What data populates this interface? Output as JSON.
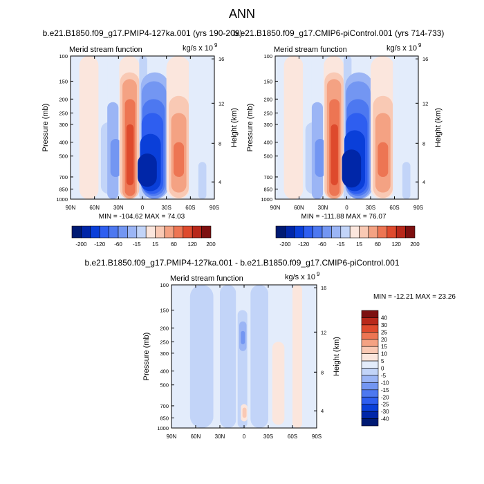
{
  "page": {
    "title": "ANN"
  },
  "colors": {
    "levels": [
      -40,
      -30,
      -25,
      -20,
      -15,
      -10,
      -5,
      0,
      5,
      10,
      15,
      20,
      25,
      30,
      40
    ],
    "bins": [
      "#001a73",
      "#0026a8",
      "#0a3fd9",
      "#2e5ef0",
      "#4d78f0",
      "#7396f2",
      "#9bb5f5",
      "#c2d4f8",
      "#e3ecfb",
      "#fbe6dd",
      "#f9c9b4",
      "#f4a283",
      "#ed7553",
      "#de4a2d",
      "#b8281a",
      "#7d1010"
    ]
  },
  "chart_data": [
    {
      "type": "heatmap",
      "title": "b.e21.B1850.f09_g17.PMIP4-127ka.001 (yrs 190-209)",
      "corner_left": "Merid stream function",
      "units": "kg/s x 10",
      "units_sup": "9",
      "ylabel": "Pressure (mb)",
      "ylabel_right": "Height (km)",
      "x_ticks": [
        "90N",
        "60N",
        "30N",
        "0",
        "30S",
        "60S",
        "90S"
      ],
      "x_range": [
        90,
        -90
      ],
      "y_ticks": [
        "100",
        "150",
        "200",
        "250",
        "300",
        "400",
        "500",
        "700",
        "850",
        "1000"
      ],
      "y_range": [
        100,
        1000
      ],
      "y_right_ticks": [
        "16",
        "12",
        "8",
        "4"
      ],
      "stats": "MIN = -104.62  MAX =  74.03",
      "min": -104.62,
      "max": 74.03,
      "cells": [
        {
          "lat_from": 90,
          "lat_to": 79,
          "p_from": 100,
          "p_to": 1000,
          "bin": 8
        },
        {
          "lat_from": 79,
          "lat_to": 55,
          "p_from": 100,
          "p_to": 1000,
          "bin": 9
        },
        {
          "lat_from": 55,
          "lat_to": 44,
          "p_from": 100,
          "p_to": 1000,
          "bin": 8
        },
        {
          "lat_from": 52,
          "lat_to": 32,
          "p_from": 290,
          "p_to": 920,
          "bin": 7
        },
        {
          "lat_from": 44,
          "lat_to": 30,
          "p_from": 210,
          "p_to": 1000,
          "bin": 6
        },
        {
          "lat_from": 40,
          "lat_to": 27,
          "p_from": 380,
          "p_to": 700,
          "bin": 5
        },
        {
          "lat_from": 29,
          "lat_to": 4,
          "p_from": 100,
          "p_to": 1000,
          "bin": 9
        },
        {
          "lat_from": 28,
          "lat_to": 4,
          "p_from": 130,
          "p_to": 1000,
          "bin": 10
        },
        {
          "lat_from": 25,
          "lat_to": 7,
          "p_from": 145,
          "p_to": 990,
          "bin": 11
        },
        {
          "lat_from": 22,
          "lat_to": 9,
          "p_from": 200,
          "p_to": 950,
          "bin": 12
        },
        {
          "lat_from": 20,
          "lat_to": 11,
          "p_from": 300,
          "p_to": 800,
          "bin": 13
        },
        {
          "lat_from": 4,
          "lat_to": -6,
          "p_from": 100,
          "p_to": 1000,
          "bin": 7
        },
        {
          "lat_from": 2,
          "lat_to": -33,
          "p_from": 130,
          "p_to": 1000,
          "bin": 6
        },
        {
          "lat_from": 1,
          "lat_to": -30,
          "p_from": 150,
          "p_to": 990,
          "bin": 5
        },
        {
          "lat_from": 0,
          "lat_to": -28,
          "p_from": 200,
          "p_to": 950,
          "bin": 4
        },
        {
          "lat_from": 1,
          "lat_to": -26,
          "p_from": 250,
          "p_to": 920,
          "bin": 3
        },
        {
          "lat_from": 3,
          "lat_to": -23,
          "p_from": 350,
          "p_to": 880,
          "bin": 2
        },
        {
          "lat_from": 6,
          "lat_to": -18,
          "p_from": 480,
          "p_to": 820,
          "bin": 1
        },
        {
          "lat_from": -30,
          "lat_to": -60,
          "p_from": 100,
          "p_to": 1000,
          "bin": 9
        },
        {
          "lat_from": -33,
          "lat_to": -58,
          "p_from": 190,
          "p_to": 980,
          "bin": 10
        },
        {
          "lat_from": -36,
          "lat_to": -55,
          "p_from": 250,
          "p_to": 900,
          "bin": 11
        },
        {
          "lat_from": -39,
          "lat_to": -52,
          "p_from": 400,
          "p_to": 700,
          "bin": 12
        },
        {
          "lat_from": -58,
          "lat_to": -66,
          "p_from": 100,
          "p_to": 1000,
          "bin": 8
        },
        {
          "lat_from": -66,
          "lat_to": -90,
          "p_from": 100,
          "p_to": 1000,
          "bin": 8
        },
        {
          "lat_from": -70,
          "lat_to": -80,
          "p_from": 550,
          "p_to": 1000,
          "bin": 7
        }
      ],
      "colorbar": {
        "labels": [
          "-200",
          "-120",
          "-60",
          "-15",
          "15",
          "60",
          "120",
          "200"
        ],
        "colors": [
          "#001a73",
          "#0026a8",
          "#0a3fd9",
          "#2e5ef0",
          "#4d78f0",
          "#7396f2",
          "#9bb5f5",
          "#c2d4f8",
          "#fbe6dd",
          "#f9c9b4",
          "#f4a283",
          "#ed7553",
          "#de4a2d",
          "#b8281a",
          "#7d1010"
        ]
      }
    },
    {
      "type": "heatmap",
      "title": "b.e21.B1850.f09_g17.CMIP6-piControl.001 (yrs 714-733)",
      "corner_left": "Merid stream function",
      "units": "kg/s x 10",
      "units_sup": "9",
      "ylabel": "Pressure (mb)",
      "ylabel_right": "Height (km)",
      "x_ticks": [
        "90N",
        "60N",
        "30N",
        "0",
        "30S",
        "60S",
        "90S"
      ],
      "x_range": [
        90,
        -90
      ],
      "y_ticks": [
        "100",
        "150",
        "200",
        "250",
        "300",
        "400",
        "500",
        "700",
        "850",
        "1000"
      ],
      "y_range": [
        100,
        1000
      ],
      "y_right_ticks": [
        "16",
        "12",
        "8",
        "4"
      ],
      "stats": "MIN = -111.88  MAX =  76.07",
      "min": -111.88,
      "max": 76.07,
      "cells": [
        {
          "lat_from": 90,
          "lat_to": 79,
          "p_from": 100,
          "p_to": 1000,
          "bin": 8
        },
        {
          "lat_from": 79,
          "lat_to": 55,
          "p_from": 100,
          "p_to": 1000,
          "bin": 9
        },
        {
          "lat_from": 55,
          "lat_to": 44,
          "p_from": 100,
          "p_to": 1000,
          "bin": 8
        },
        {
          "lat_from": 52,
          "lat_to": 32,
          "p_from": 290,
          "p_to": 920,
          "bin": 7
        },
        {
          "lat_from": 44,
          "lat_to": 30,
          "p_from": 210,
          "p_to": 1000,
          "bin": 6
        },
        {
          "lat_from": 40,
          "lat_to": 27,
          "p_from": 380,
          "p_to": 700,
          "bin": 5
        },
        {
          "lat_from": 29,
          "lat_to": 4,
          "p_from": 100,
          "p_to": 1000,
          "bin": 9
        },
        {
          "lat_from": 28,
          "lat_to": 4,
          "p_from": 130,
          "p_to": 1000,
          "bin": 10
        },
        {
          "lat_from": 25,
          "lat_to": 7,
          "p_from": 145,
          "p_to": 990,
          "bin": 11
        },
        {
          "lat_from": 22,
          "lat_to": 9,
          "p_from": 200,
          "p_to": 950,
          "bin": 12
        },
        {
          "lat_from": 20,
          "lat_to": 11,
          "p_from": 300,
          "p_to": 800,
          "bin": 13
        },
        {
          "lat_from": 4,
          "lat_to": -6,
          "p_from": 100,
          "p_to": 1000,
          "bin": 7
        },
        {
          "lat_from": 2,
          "lat_to": -33,
          "p_from": 130,
          "p_to": 1000,
          "bin": 6
        },
        {
          "lat_from": 1,
          "lat_to": -30,
          "p_from": 150,
          "p_to": 990,
          "bin": 5
        },
        {
          "lat_from": 0,
          "lat_to": -28,
          "p_from": 200,
          "p_to": 950,
          "bin": 4
        },
        {
          "lat_from": 1,
          "lat_to": -26,
          "p_from": 250,
          "p_to": 920,
          "bin": 3
        },
        {
          "lat_from": 3,
          "lat_to": -23,
          "p_from": 330,
          "p_to": 880,
          "bin": 2
        },
        {
          "lat_from": 6,
          "lat_to": -18,
          "p_from": 450,
          "p_to": 830,
          "bin": 1
        },
        {
          "lat_from": -30,
          "lat_to": -60,
          "p_from": 100,
          "p_to": 1000,
          "bin": 9
        },
        {
          "lat_from": -33,
          "lat_to": -58,
          "p_from": 190,
          "p_to": 980,
          "bin": 10
        },
        {
          "lat_from": -36,
          "lat_to": -55,
          "p_from": 250,
          "p_to": 900,
          "bin": 11
        },
        {
          "lat_from": -39,
          "lat_to": -52,
          "p_from": 400,
          "p_to": 700,
          "bin": 12
        },
        {
          "lat_from": -58,
          "lat_to": -66,
          "p_from": 100,
          "p_to": 1000,
          "bin": 8
        },
        {
          "lat_from": -66,
          "lat_to": -90,
          "p_from": 100,
          "p_to": 1000,
          "bin": 8
        },
        {
          "lat_from": -70,
          "lat_to": -80,
          "p_from": 550,
          "p_to": 1000,
          "bin": 7
        }
      ],
      "colorbar": {
        "labels": [
          "-200",
          "-120",
          "-60",
          "-15",
          "15",
          "60",
          "120",
          "200"
        ],
        "colors": [
          "#001a73",
          "#0026a8",
          "#0a3fd9",
          "#2e5ef0",
          "#4d78f0",
          "#7396f2",
          "#9bb5f5",
          "#c2d4f8",
          "#fbe6dd",
          "#f9c9b4",
          "#f4a283",
          "#ed7553",
          "#de4a2d",
          "#b8281a",
          "#7d1010"
        ]
      }
    },
    {
      "type": "heatmap",
      "title": "b.e21.B1850.f09_g17.PMIP4-127ka.001 - b.e21.B1850.f09_g17.CMIP6-piControl.001",
      "corner_left": "Merid stream function",
      "units": "kg/s x 10",
      "units_sup": "9",
      "ylabel": "Pressure (mb)",
      "ylabel_right": "Height (km)",
      "x_ticks": [
        "90N",
        "60N",
        "30N",
        "0",
        "30S",
        "60S",
        "90S"
      ],
      "x_range": [
        90,
        -90
      ],
      "y_ticks": [
        "100",
        "150",
        "200",
        "250",
        "300",
        "400",
        "500",
        "700",
        "850",
        "1000"
      ],
      "y_range": [
        100,
        1000
      ],
      "y_right_ticks": [
        "16",
        "12",
        "8",
        "4"
      ],
      "stats": "MIN = -12.21  MAX =  23.26",
      "min": -12.21,
      "max": 23.26,
      "cells": [
        {
          "lat_from": 90,
          "lat_to": 67,
          "p_from": 100,
          "p_to": 1000,
          "bin": 8
        },
        {
          "lat_from": 67,
          "lat_to": 38,
          "p_from": 100,
          "p_to": 1000,
          "bin": 7
        },
        {
          "lat_from": 38,
          "lat_to": 30,
          "p_from": 100,
          "p_to": 1000,
          "bin": 8
        },
        {
          "lat_from": 30,
          "lat_to": 10,
          "p_from": 100,
          "p_to": 1000,
          "bin": 7
        },
        {
          "lat_from": 10,
          "lat_to": -8,
          "p_from": 100,
          "p_to": 1000,
          "bin": 8
        },
        {
          "lat_from": 8,
          "lat_to": -4,
          "p_from": 150,
          "p_to": 1000,
          "bin": 7
        },
        {
          "lat_from": 6,
          "lat_to": -3,
          "p_from": 180,
          "p_to": 290,
          "bin": 6
        },
        {
          "lat_from": 4,
          "lat_to": -1,
          "p_from": 210,
          "p_to": 260,
          "bin": 5
        },
        {
          "lat_from": 5,
          "lat_to": -2,
          "p_from": 330,
          "p_to": 430,
          "bin": 7
        },
        {
          "lat_from": 4,
          "lat_to": -4,
          "p_from": 680,
          "p_to": 900,
          "bin": 9
        },
        {
          "lat_from": 2,
          "lat_to": -3,
          "p_from": 720,
          "p_to": 850,
          "bin": 10
        },
        {
          "lat_from": -8,
          "lat_to": -30,
          "p_from": 100,
          "p_to": 1000,
          "bin": 7
        },
        {
          "lat_from": -30,
          "lat_to": -60,
          "p_from": 100,
          "p_to": 1000,
          "bin": 8
        },
        {
          "lat_from": -35,
          "lat_to": -50,
          "p_from": 250,
          "p_to": 950,
          "bin": 9
        },
        {
          "lat_from": -60,
          "lat_to": -72,
          "p_from": 100,
          "p_to": 1000,
          "bin": 9
        },
        {
          "lat_from": -72,
          "lat_to": -90,
          "p_from": 100,
          "p_to": 1000,
          "bin": 8
        }
      ],
      "colorbar": {
        "labels": [
          "40",
          "30",
          "25",
          "20",
          "15",
          "10",
          "5",
          "0",
          "-5",
          "-10",
          "-15",
          "-20",
          "-25",
          "-30",
          "-40"
        ],
        "colors": [
          "#7d1010",
          "#b8281a",
          "#de4a2d",
          "#ed7553",
          "#f4a283",
          "#f9c9b4",
          "#fbe6dd",
          "#e3ecfb",
          "#c2d4f8",
          "#9bb5f5",
          "#7396f2",
          "#4d78f0",
          "#2e5ef0",
          "#0a3fd9",
          "#0026a8",
          "#001a73"
        ]
      }
    }
  ]
}
